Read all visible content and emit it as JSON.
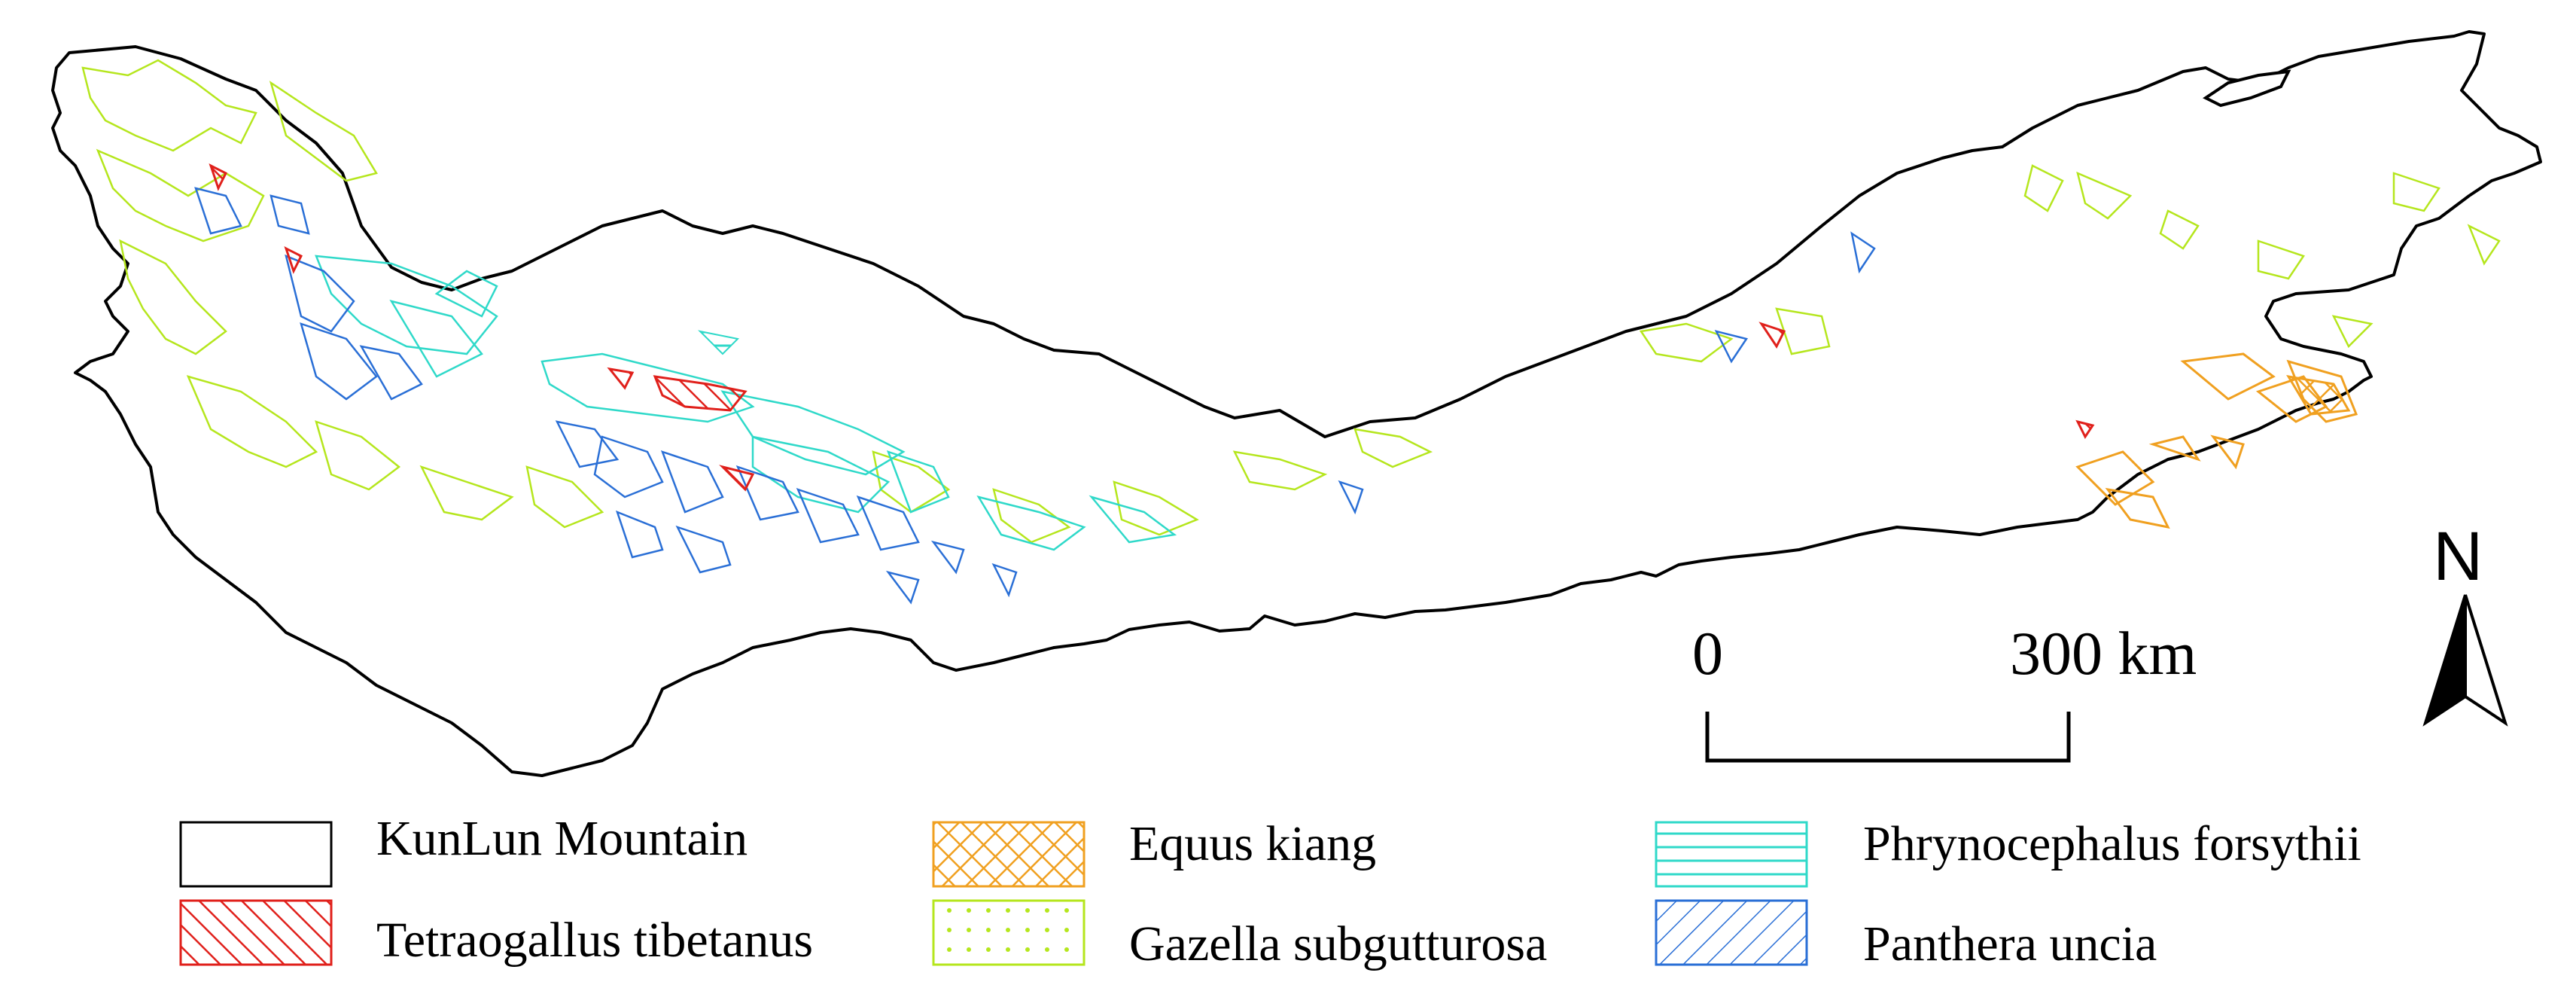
{
  "colors": {
    "boundary": "#000000",
    "tetraogallus": "#e0201b",
    "equus": "#f0a020",
    "gazella": "#b5e61d",
    "phrynocephalus": "#2fd9c9",
    "panthera": "#2a6fd6"
  },
  "legend": {
    "items": [
      {
        "key": "boundary",
        "label": "KunLun Mountain",
        "pattern": "none"
      },
      {
        "key": "tetraogallus",
        "label": "Tetraogallus tibetanus",
        "pattern": "diagonal"
      },
      {
        "key": "equus",
        "label": "Equus kiang",
        "pattern": "crosshatch"
      },
      {
        "key": "gazella",
        "label": "Gazella subgutturosa",
        "pattern": "dots"
      },
      {
        "key": "phrynocephalus",
        "label": "Phrynocephalus forsythii",
        "pattern": "horizontal"
      },
      {
        "key": "panthera",
        "label": "Panthera uncia",
        "pattern": "backdiagonal"
      }
    ]
  },
  "scale_bar": {
    "start_label": "0",
    "end_label": "300 km"
  },
  "north_arrow": {
    "label": "N",
    "icon": "north-arrow-icon"
  }
}
